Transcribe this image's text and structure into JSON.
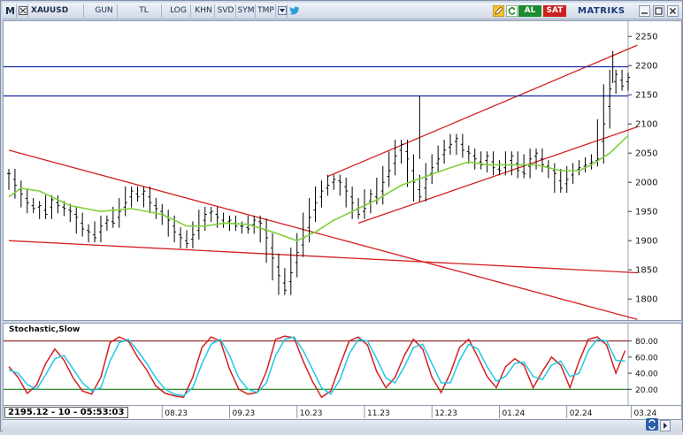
{
  "toolbar": {
    "m_label": "M",
    "symbol": "XAUUSD",
    "buttons": [
      "GUN",
      "TL",
      "LOG",
      "KHN",
      "SVD",
      "SYM",
      "TMP"
    ],
    "al_label": "AL",
    "sat_label": "SAT",
    "brand": "MATRIKS",
    "colors": {
      "al": "#1e8a2e",
      "sat": "#cc1f1f"
    }
  },
  "chart_data": [
    {
      "type": "line",
      "panel": "price",
      "title": "",
      "ylabel": "",
      "ylim": [
        1770,
        2270
      ],
      "yticks": [
        2250,
        2200,
        2150,
        2100,
        2050,
        2000,
        1950,
        1900,
        1850,
        1800
      ],
      "x_range": [
        0,
        202
      ],
      "x_ticks": [
        {
          "x": 50,
          "label": "08.23"
        },
        {
          "x": 72,
          "label": "09.23"
        },
        {
          "x": 94,
          "label": "10.23"
        },
        {
          "x": 116,
          "label": "11.23"
        },
        {
          "x": 138,
          "label": "12.23"
        },
        {
          "x": 160,
          "label": "01.24"
        },
        {
          "x": 182,
          "label": "02.24"
        },
        {
          "x": 203,
          "label": "03.24"
        }
      ],
      "bar_series": {
        "name": "",
        "ohlc": [
          [
            0,
            2015
          ],
          [
            2,
            1995
          ],
          [
            4,
            1980
          ],
          [
            6,
            1965
          ],
          [
            8,
            1955
          ],
          [
            10,
            1960
          ],
          [
            12,
            1945
          ],
          [
            14,
            1970
          ],
          [
            16,
            1960
          ],
          [
            18,
            1955
          ],
          [
            20,
            1950
          ],
          [
            22,
            1940
          ],
          [
            24,
            1920
          ],
          [
            26,
            1915
          ],
          [
            28,
            1905
          ],
          [
            30,
            1925
          ],
          [
            32,
            1935
          ],
          [
            34,
            1930
          ],
          [
            36,
            1950
          ],
          [
            38,
            1965
          ],
          [
            40,
            1985
          ],
          [
            42,
            1975
          ],
          [
            44,
            1985
          ],
          [
            46,
            1965
          ],
          [
            48,
            1955
          ],
          [
            50,
            1945
          ],
          [
            52,
            1935
          ],
          [
            54,
            1915
          ],
          [
            56,
            1905
          ],
          [
            58,
            1895
          ],
          [
            60,
            1910
          ],
          [
            62,
            1925
          ],
          [
            64,
            1945
          ],
          [
            66,
            1950
          ],
          [
            68,
            1940
          ],
          [
            70,
            1930
          ],
          [
            72,
            1935
          ],
          [
            74,
            1925
          ],
          [
            76,
            1925
          ],
          [
            78,
            1920
          ],
          [
            80,
            1935
          ],
          [
            82,
            1930
          ],
          [
            84,
            1905
          ],
          [
            86,
            1870
          ],
          [
            88,
            1840
          ],
          [
            90,
            1815
          ],
          [
            92,
            1845
          ],
          [
            94,
            1880
          ],
          [
            96,
            1905
          ],
          [
            98,
            1940
          ],
          [
            100,
            1965
          ],
          [
            102,
            1985
          ],
          [
            104,
            1995
          ],
          [
            106,
            2005
          ],
          [
            108,
            2000
          ],
          [
            110,
            1985
          ],
          [
            112,
            1965
          ],
          [
            114,
            1945
          ],
          [
            116,
            1955
          ],
          [
            118,
            1980
          ],
          [
            120,
            1970
          ],
          [
            122,
            2000
          ],
          [
            124,
            2020
          ],
          [
            126,
            2045
          ],
          [
            128,
            2065
          ],
          [
            130,
            2040
          ],
          [
            132,
            2000
          ],
          [
            134,
            1975
          ],
          [
            136,
            2005
          ],
          [
            138,
            2025
          ],
          [
            140,
            2040
          ],
          [
            142,
            2055
          ],
          [
            144,
            2065
          ],
          [
            146,
            2075
          ],
          [
            148,
            2055
          ],
          [
            150,
            2050
          ],
          [
            152,
            2040
          ],
          [
            154,
            2030
          ],
          [
            156,
            2045
          ],
          [
            158,
            2025
          ],
          [
            160,
            2020
          ],
          [
            162,
            2030
          ],
          [
            164,
            2045
          ],
          [
            166,
            2020
          ],
          [
            168,
            2015
          ],
          [
            170,
            2040
          ],
          [
            172,
            2050
          ],
          [
            174,
            2030
          ],
          [
            176,
            2025
          ],
          [
            178,
            2015
          ],
          [
            180,
            1990
          ],
          [
            182,
            2005
          ],
          [
            184,
            2020
          ],
          [
            186,
            2025
          ],
          [
            188,
            2030
          ],
          [
            190,
            2035
          ],
          [
            192,
            2040
          ],
          [
            194,
            2100
          ],
          [
            196,
            2160
          ],
          [
            198,
            2185
          ],
          [
            200,
            2165
          ],
          [
            202,
            2180
          ]
        ]
      },
      "ma_series": {
        "name": "",
        "color": "#7fd13b",
        "points": [
          [
            0,
            1975
          ],
          [
            4,
            1990
          ],
          [
            10,
            1985
          ],
          [
            20,
            1960
          ],
          [
            30,
            1950
          ],
          [
            40,
            1955
          ],
          [
            50,
            1945
          ],
          [
            58,
            1925
          ],
          [
            64,
            1925
          ],
          [
            70,
            1930
          ],
          [
            78,
            1928
          ],
          [
            86,
            1915
          ],
          [
            94,
            1900
          ],
          [
            100,
            1915
          ],
          [
            106,
            1935
          ],
          [
            114,
            1955
          ],
          [
            120,
            1970
          ],
          [
            128,
            1995
          ],
          [
            136,
            2010
          ],
          [
            144,
            2025
          ],
          [
            150,
            2035
          ],
          [
            156,
            2030
          ],
          [
            164,
            2030
          ],
          [
            172,
            2030
          ],
          [
            180,
            2020
          ],
          [
            186,
            2020
          ],
          [
            190,
            2030
          ],
          [
            196,
            2050
          ],
          [
            202,
            2080
          ]
        ]
      },
      "trend_lines": [
        {
          "color": "#d42020",
          "from": [
            0,
            2055
          ],
          "to": [
            205,
            1765
          ]
        },
        {
          "color": "#d42020",
          "from": [
            0,
            1900
          ],
          "to": [
            205,
            1845
          ]
        },
        {
          "color": "#d42020",
          "from": [
            104,
            2010
          ],
          "to": [
            205,
            2235
          ]
        },
        {
          "color": "#d42020",
          "from": [
            114,
            1930
          ],
          "to": [
            205,
            2095
          ]
        }
      ],
      "horizontal_lines": [
        {
          "color": "#1428a0",
          "y": 2198
        },
        {
          "color": "#1428a0",
          "y": 2148
        }
      ]
    },
    {
      "type": "line",
      "panel": "stochastic",
      "title": "Stochastic,Slow",
      "ylim": [
        5,
        95
      ],
      "yticks": [
        80,
        60,
        40,
        20
      ],
      "levels": [
        {
          "y": 80,
          "color": "#8b1a1a"
        },
        {
          "y": 20,
          "color": "#1a7a1a"
        }
      ],
      "x_range": [
        0,
        202
      ],
      "series": [
        {
          "name": "",
          "color": "#d42020",
          "points": [
            [
              0,
              48
            ],
            [
              3,
              35
            ],
            [
              6,
              15
            ],
            [
              9,
              25
            ],
            [
              12,
              52
            ],
            [
              15,
              70
            ],
            [
              18,
              56
            ],
            [
              21,
              34
            ],
            [
              24,
              18
            ],
            [
              27,
              14
            ],
            [
              30,
              35
            ],
            [
              33,
              78
            ],
            [
              36,
              85
            ],
            [
              39,
              80
            ],
            [
              42,
              60
            ],
            [
              45,
              44
            ],
            [
              48,
              24
            ],
            [
              51,
              15
            ],
            [
              54,
              12
            ],
            [
              57,
              10
            ],
            [
              60,
              35
            ],
            [
              63,
              72
            ],
            [
              66,
              85
            ],
            [
              69,
              80
            ],
            [
              72,
              45
            ],
            [
              75,
              20
            ],
            [
              78,
              14
            ],
            [
              81,
              16
            ],
            [
              84,
              42
            ],
            [
              87,
              82
            ],
            [
              90,
              86
            ],
            [
              93,
              84
            ],
            [
              96,
              55
            ],
            [
              99,
              30
            ],
            [
              102,
              10
            ],
            [
              105,
              18
            ],
            [
              108,
              50
            ],
            [
              111,
              80
            ],
            [
              114,
              85
            ],
            [
              117,
              75
            ],
            [
              120,
              42
            ],
            [
              123,
              22
            ],
            [
              126,
              35
            ],
            [
              129,
              62
            ],
            [
              132,
              82
            ],
            [
              135,
              70
            ],
            [
              138,
              35
            ],
            [
              141,
              16
            ],
            [
              144,
              40
            ],
            [
              147,
              72
            ],
            [
              150,
              82
            ],
            [
              153,
              60
            ],
            [
              156,
              36
            ],
            [
              159,
              22
            ],
            [
              162,
              48
            ],
            [
              165,
              58
            ],
            [
              168,
              50
            ],
            [
              171,
              22
            ],
            [
              174,
              42
            ],
            [
              177,
              60
            ],
            [
              180,
              50
            ],
            [
              183,
              22
            ],
            [
              186,
              55
            ],
            [
              189,
              82
            ],
            [
              192,
              85
            ],
            [
              195,
              75
            ],
            [
              198,
              40
            ],
            [
              201,
              68
            ]
          ]
        },
        {
          "name": "",
          "color": "#1ec8e6",
          "points": [
            [
              0,
              44
            ],
            [
              3,
              40
            ],
            [
              6,
              26
            ],
            [
              9,
              20
            ],
            [
              12,
              38
            ],
            [
              15,
              58
            ],
            [
              18,
              62
            ],
            [
              21,
              45
            ],
            [
              24,
              28
            ],
            [
              27,
              18
            ],
            [
              30,
              22
            ],
            [
              33,
              55
            ],
            [
              36,
              78
            ],
            [
              39,
              82
            ],
            [
              42,
              68
            ],
            [
              45,
              52
            ],
            [
              48,
              34
            ],
            [
              51,
              20
            ],
            [
              54,
              14
            ],
            [
              57,
              12
            ],
            [
              60,
              22
            ],
            [
              63,
              52
            ],
            [
              66,
              76
            ],
            [
              69,
              82
            ],
            [
              72,
              62
            ],
            [
              75,
              34
            ],
            [
              78,
              20
            ],
            [
              81,
              16
            ],
            [
              84,
              28
            ],
            [
              87,
              62
            ],
            [
              90,
              82
            ],
            [
              93,
              85
            ],
            [
              96,
              68
            ],
            [
              99,
              45
            ],
            [
              102,
              22
            ],
            [
              105,
              14
            ],
            [
              108,
              32
            ],
            [
              111,
              64
            ],
            [
              114,
              82
            ],
            [
              117,
              80
            ],
            [
              120,
              58
            ],
            [
              123,
              34
            ],
            [
              126,
              28
            ],
            [
              129,
              48
            ],
            [
              132,
              72
            ],
            [
              135,
              76
            ],
            [
              138,
              52
            ],
            [
              141,
              28
            ],
            [
              144,
              28
            ],
            [
              147,
              56
            ],
            [
              150,
              76
            ],
            [
              153,
              70
            ],
            [
              156,
              48
            ],
            [
              159,
              30
            ],
            [
              162,
              36
            ],
            [
              165,
              52
            ],
            [
              168,
              54
            ],
            [
              171,
              36
            ],
            [
              174,
              32
            ],
            [
              177,
              50
            ],
            [
              180,
              55
            ],
            [
              183,
              36
            ],
            [
              186,
              40
            ],
            [
              189,
              68
            ],
            [
              192,
              82
            ],
            [
              195,
              80
            ],
            [
              198,
              56
            ],
            [
              201,
              55
            ]
          ]
        }
      ]
    }
  ],
  "status": {
    "readout": "2195.12 - 10 - 05:53:03"
  }
}
